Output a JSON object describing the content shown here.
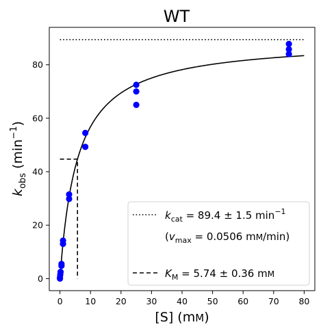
{
  "chart_data": {
    "type": "scatter",
    "title": "WT",
    "xlabel": "[S] (mᴍ)",
    "ylabel": "k_obs (min⁻¹)",
    "xlim": [
      -3.5,
      83.5
    ],
    "ylim": [
      -4.5,
      94.0
    ],
    "xticks": [
      0,
      10,
      20,
      30,
      40,
      50,
      60,
      70,
      80
    ],
    "yticks": [
      0,
      20,
      40,
      60,
      80
    ],
    "grid": false,
    "legend_position": "lower-right",
    "points": {
      "color": "#0000ff",
      "data": [
        [
          0.0,
          0.0
        ],
        [
          0.0,
          0.5
        ],
        [
          0.1,
          1.5
        ],
        [
          0.2,
          2.5
        ],
        [
          0.5,
          4.8
        ],
        [
          0.5,
          5.5
        ],
        [
          1.0,
          13.0
        ],
        [
          1.0,
          14.2
        ],
        [
          3.0,
          29.8
        ],
        [
          3.0,
          31.5
        ],
        [
          8.3,
          49.3
        ],
        [
          8.3,
          54.5
        ],
        [
          25.0,
          65.0
        ],
        [
          25.0,
          70.0
        ],
        [
          25.0,
          72.5
        ],
        [
          75.0,
          84.0
        ],
        [
          75.0,
          85.8
        ],
        [
          75.0,
          87.8
        ]
      ]
    },
    "fit": {
      "model": "michaelis-menten",
      "kcat": 89.4,
      "km": 5.74,
      "x_range": [
        0,
        80
      ],
      "color": "#000000"
    },
    "reference_lines": {
      "kcat_line": {
        "y": 89.4,
        "x_range": [
          0,
          80
        ],
        "style": "dotted"
      },
      "km_line": {
        "x": 5.74,
        "y": 44.7,
        "x_start": 0,
        "style": "dashed"
      }
    },
    "legend": {
      "kcat_entry": "k_cat = 89.4 ± 1.5 min⁻¹",
      "vmax_entry": "(v_max = 0.0506 mᴍ/min)",
      "km_entry": "K_M = 5.74 ± 0.36 mᴍ"
    }
  }
}
